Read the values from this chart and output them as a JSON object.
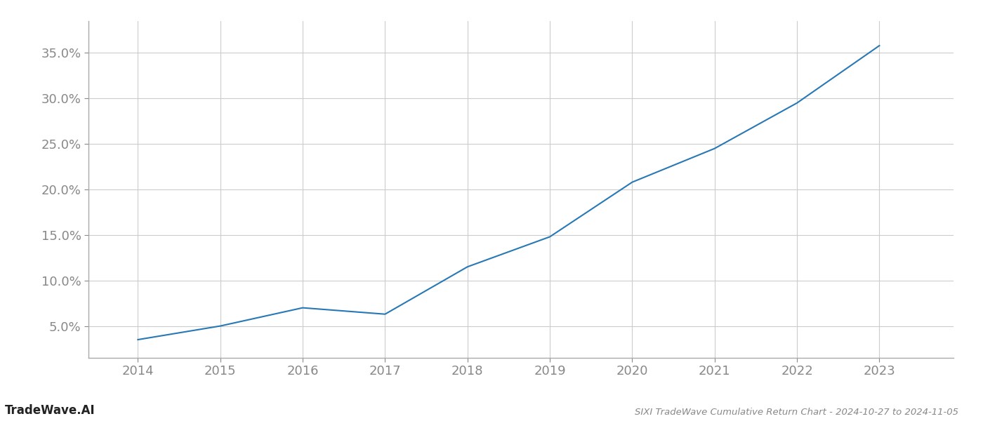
{
  "x_values": [
    2014,
    2015,
    2016,
    2017,
    2018,
    2019,
    2020,
    2021,
    2022,
    2023
  ],
  "y_values": [
    3.5,
    5.0,
    7.0,
    6.3,
    11.5,
    14.8,
    20.8,
    24.5,
    29.5,
    35.8
  ],
  "line_color": "#2878b5",
  "line_width": 1.5,
  "background_color": "#ffffff",
  "grid_color": "#cccccc",
  "title": "SIXI TradeWave Cumulative Return Chart - 2024-10-27 to 2024-11-05",
  "watermark": "TradeWave.AI",
  "xlim": [
    2013.4,
    2023.9
  ],
  "ylim": [
    1.5,
    38.5
  ],
  "yticks": [
    5.0,
    10.0,
    15.0,
    20.0,
    25.0,
    30.0,
    35.0
  ],
  "xticks": [
    2014,
    2015,
    2016,
    2017,
    2018,
    2019,
    2020,
    2021,
    2022,
    2023
  ],
  "tick_color": "#888888",
  "title_fontsize": 9.5,
  "watermark_fontsize": 12,
  "axis_tick_fontsize": 13
}
